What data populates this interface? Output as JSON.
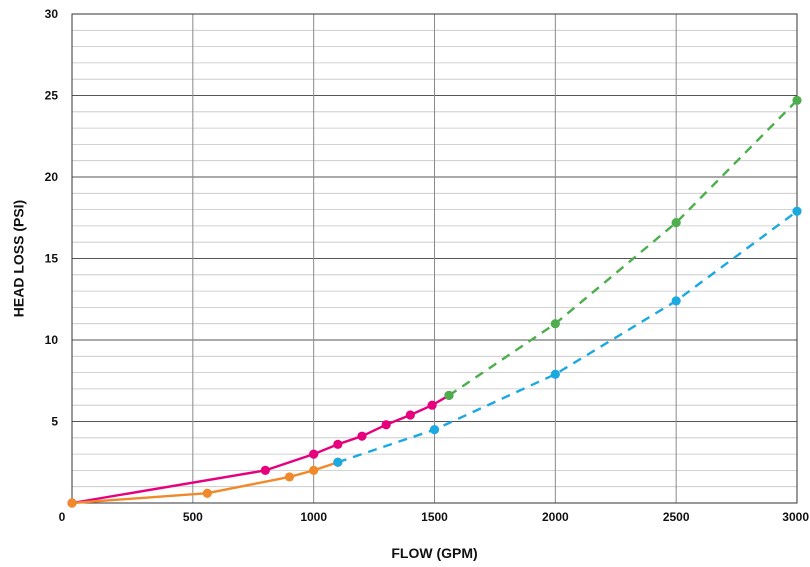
{
  "chart_data": {
    "type": "line",
    "title": "",
    "xlabel": "FLOW (GPM)",
    "ylabel": "HEAD LOSS (PSI)",
    "xlim": [
      0,
      3000
    ],
    "ylim": [
      0,
      30
    ],
    "x_ticks": [
      "0",
      "500",
      "1000",
      "1500",
      "2000",
      "2500",
      "3000"
    ],
    "y_ticks": [
      "5",
      "10",
      "15",
      "20",
      "25",
      "30"
    ],
    "grid": true,
    "legend": "none",
    "series": [
      {
        "color": "#e6007e",
        "dash": false,
        "points": [
          [
            0,
            0
          ],
          [
            800,
            2.0
          ],
          [
            1000,
            3.0
          ],
          [
            1100,
            3.6
          ],
          [
            1200,
            4.1
          ],
          [
            1300,
            4.8
          ],
          [
            1400,
            5.4
          ],
          [
            1490,
            6.0
          ],
          [
            1560,
            6.6
          ]
        ]
      },
      {
        "color": "#f0892a",
        "dash": false,
        "points": [
          [
            0,
            0
          ],
          [
            560,
            0.6
          ],
          [
            900,
            1.6
          ],
          [
            1000,
            2.0
          ],
          [
            1100,
            2.5
          ]
        ]
      },
      {
        "color": "#4cae4c",
        "dash": true,
        "points": [
          [
            1560,
            6.6
          ],
          [
            2000,
            11.0
          ],
          [
            2500,
            17.2
          ],
          [
            3000,
            24.7
          ]
        ]
      },
      {
        "color": "#1ba9e1",
        "dash": true,
        "points": [
          [
            1100,
            2.5
          ],
          [
            1500,
            4.5
          ],
          [
            2000,
            7.9
          ],
          [
            2500,
            12.4
          ],
          [
            3000,
            17.9
          ]
        ]
      }
    ]
  }
}
